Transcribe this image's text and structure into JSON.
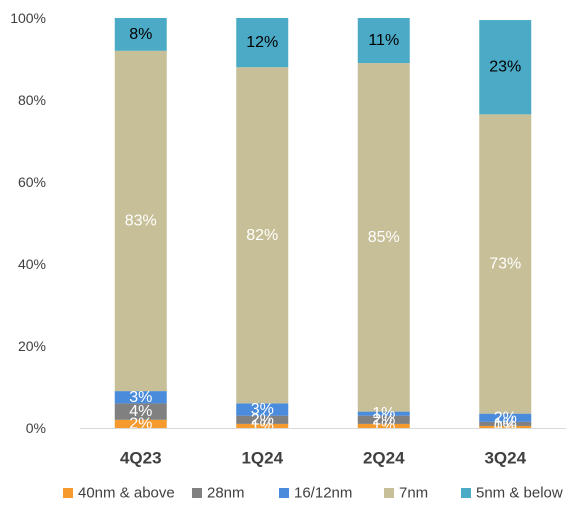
{
  "chart_data": {
    "type": "bar",
    "stacked": true,
    "categories": [
      "4Q23",
      "1Q24",
      "2Q24",
      "3Q24"
    ],
    "ylim": [
      0,
      100
    ],
    "yticks": [
      0,
      20,
      40,
      60,
      80,
      100
    ],
    "ytick_labels": [
      "0%",
      "20%",
      "40%",
      "60%",
      "80%",
      "100%"
    ],
    "grid": false,
    "legend_position": "bottom",
    "series": [
      {
        "name": "40nm & above",
        "color": "#F79A2E",
        "label_color": "#ffffff",
        "values": [
          2,
          1,
          1,
          0.5
        ],
        "labels": [
          "2%",
          "1%",
          "1%",
          "0%"
        ]
      },
      {
        "name": "28nm",
        "color": "#808080",
        "label_color": "#ffffff",
        "values": [
          4,
          2,
          2,
          1
        ],
        "labels": [
          "4%",
          "2%",
          "2%",
          "1%"
        ]
      },
      {
        "name": "16/12nm",
        "color": "#4A8BDB",
        "label_color": "#ffffff",
        "values": [
          3,
          3,
          1,
          2
        ],
        "labels": [
          "3%",
          "3%",
          "1%",
          "2%"
        ]
      },
      {
        "name": "7nm",
        "color": "#C7BF97",
        "label_color": "#ffffff",
        "values": [
          83,
          82,
          85,
          73
        ],
        "labels": [
          "83%",
          "82%",
          "85%",
          "73%"
        ]
      },
      {
        "name": "5nm & below",
        "color": "#4BAAC6",
        "label_color": "#000000",
        "values": [
          8,
          12,
          11,
          23
        ],
        "labels": [
          "8%",
          "12%",
          "11%",
          "23%"
        ]
      }
    ]
  }
}
